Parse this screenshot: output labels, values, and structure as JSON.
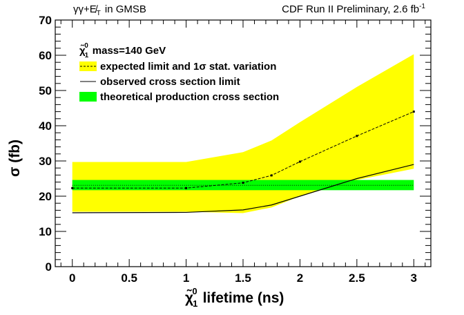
{
  "header": {
    "left": "γγ+E̸",
    "left_sub": "T",
    "left_suffix": "in GMSB",
    "right_prefix": "CDF Run II Preliminary, 2.6 fb",
    "right_sup": "-1"
  },
  "colors": {
    "band": "#ffff00",
    "theory": "#00ff00",
    "line": "#000000"
  },
  "chart_data": {
    "type": "line",
    "title": "",
    "xlabel": "lifetime (ns)",
    "xlabel_particle": "χ̃",
    "xlabel_sub": "1",
    "xlabel_sup": "0",
    "ylabel": "σ (fb)",
    "xlim": [
      -0.15,
      3.15
    ],
    "ylim": [
      0,
      70
    ],
    "x_ticks": [
      0,
      0.5,
      1,
      1.5,
      2,
      2.5,
      3
    ],
    "x_tick_labels": [
      "0",
      "0.5",
      "1",
      "1.5",
      "2",
      "2.5",
      "3"
    ],
    "y_ticks": [
      0,
      10,
      20,
      30,
      40,
      50,
      60,
      70
    ],
    "y_tick_labels": [
      "0",
      "10",
      "20",
      "30",
      "40",
      "50",
      "60",
      "70"
    ],
    "legend_title_particle": "χ̃",
    "legend_title_sub": "1",
    "legend_title_sup": "0",
    "legend_title_text": "mass=140 GeV",
    "legend": [
      {
        "key": "band",
        "label_prefix": "expected limit and 1",
        "label_sigma": "σ",
        "label_suffix": " stat. variation"
      },
      {
        "key": "observed",
        "label": "observed cross section limit"
      },
      {
        "key": "theory",
        "label": "theoretical production cross section"
      }
    ],
    "band_x": [
      0,
      1,
      1.5,
      1.75,
      2,
      2.5,
      3
    ],
    "band_upper": [
      29.7,
      29.7,
      32.5,
      35.8,
      41.0,
      51.0,
      60.3
    ],
    "band_lower": [
      15.6,
      15.6,
      15.2,
      16.8,
      20.0,
      24.6,
      27.8
    ],
    "expected_x": [
      0,
      1,
      1.5,
      1.75,
      2,
      2.5,
      3
    ],
    "expected": [
      22.3,
      22.3,
      23.8,
      25.9,
      29.8,
      37.1,
      44.0
    ],
    "observed_x": [
      0,
      1,
      1.5,
      1.75,
      2,
      2.5,
      3
    ],
    "observed": [
      15.3,
      15.4,
      16.1,
      17.5,
      20.0,
      25.0,
      29.0
    ],
    "theory_x": [
      0,
      3
    ],
    "theory_center": [
      23.1,
      23.1
    ],
    "theory_low": [
      21.7,
      21.7
    ],
    "theory_high": [
      24.6,
      24.6
    ]
  }
}
